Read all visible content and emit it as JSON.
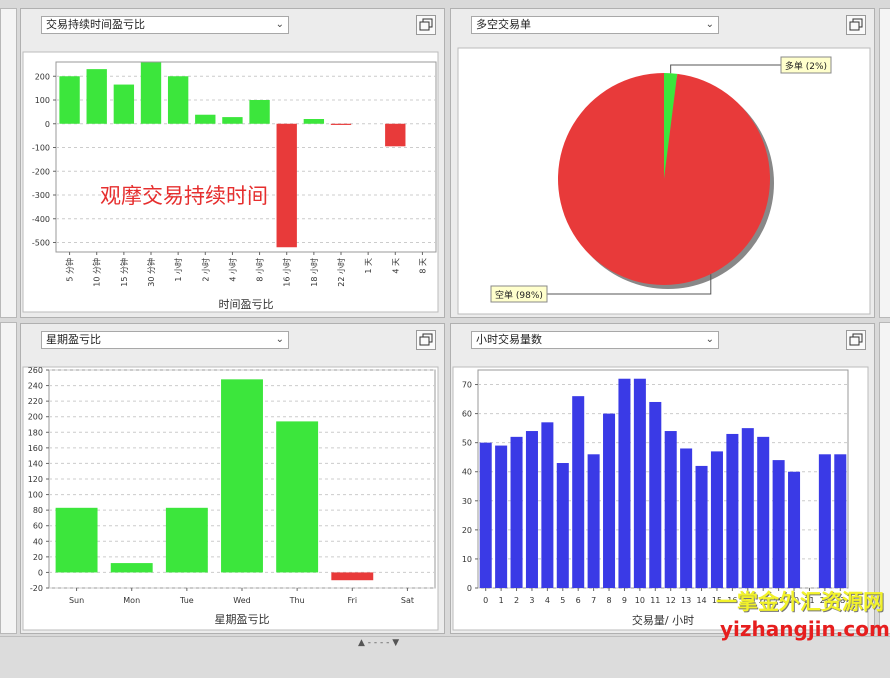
{
  "panels": {
    "duration": {
      "dropdown": "交易持续时间盈亏比"
    },
    "longshort": {
      "dropdown": "多空交易单"
    },
    "weekday": {
      "dropdown": "星期盈亏比"
    },
    "hourly": {
      "dropdown": "小时交易量数"
    }
  },
  "overlay_text": "观摩交易持续时间",
  "statusbar": {
    "handle": "▲ - - - - ▼"
  },
  "watermark": {
    "line1": "一掌金外汇资源网",
    "line2": "yizhangjin.com"
  },
  "colors": {
    "positive": "#3ce63c",
    "negative": "#e83a3a",
    "volume": "#3a3ae6",
    "grid": "#cccccc"
  },
  "chart_data": [
    {
      "type": "bar",
      "xlabel": "时间盈亏比",
      "categories": [
        "5 分钟",
        "10 分钟",
        "15 分钟",
        "30 分钟",
        "1 小时",
        "2 小时",
        "4 小时",
        "8 小时",
        "16 小时",
        "18 小时",
        "22 小时",
        "1 天",
        "4 天",
        "8 天"
      ],
      "values": [
        200,
        230,
        165,
        258,
        200,
        38,
        28,
        100,
        -520,
        20,
        -5,
        0,
        -95,
        0
      ],
      "yticks": [
        200,
        100,
        0,
        -100,
        -200,
        -300,
        -400,
        -500
      ],
      "ylim": [
        -540,
        260
      ],
      "grid": true
    },
    {
      "type": "pie",
      "slices": [
        {
          "label": "多单 (2%)",
          "value": 2,
          "color": "#3ce63c"
        },
        {
          "label": "空单 (98%)",
          "value": 98,
          "color": "#e83a3a"
        }
      ]
    },
    {
      "type": "bar",
      "xlabel": "星期盈亏比",
      "categories": [
        "Sun",
        "Mon",
        "Tue",
        "Wed",
        "Thu",
        "Fri",
        "Sat"
      ],
      "values": [
        83,
        12,
        83,
        248,
        194,
        -10,
        0
      ],
      "yticks": [
        260,
        240,
        220,
        200,
        180,
        160,
        140,
        120,
        100,
        80,
        60,
        40,
        20,
        0,
        -20
      ],
      "ylim": [
        -20,
        260
      ],
      "grid": true
    },
    {
      "type": "bar",
      "xlabel": "交易量/ 小时",
      "categories": [
        "0",
        "1",
        "2",
        "3",
        "4",
        "5",
        "6",
        "7",
        "8",
        "9",
        "10",
        "11",
        "12",
        "13",
        "14",
        "15",
        "16",
        "17",
        "18",
        "19",
        "20",
        "21",
        "22",
        "23"
      ],
      "values": [
        50,
        49,
        52,
        54,
        57,
        43,
        66,
        46,
        60,
        72,
        72,
        64,
        54,
        48,
        42,
        47,
        53,
        55,
        52,
        44,
        40,
        0,
        46,
        46
      ],
      "yticks": [
        70,
        60,
        50,
        40,
        30,
        20,
        10,
        0
      ],
      "ylim": [
        0,
        75
      ],
      "grid": true
    }
  ]
}
